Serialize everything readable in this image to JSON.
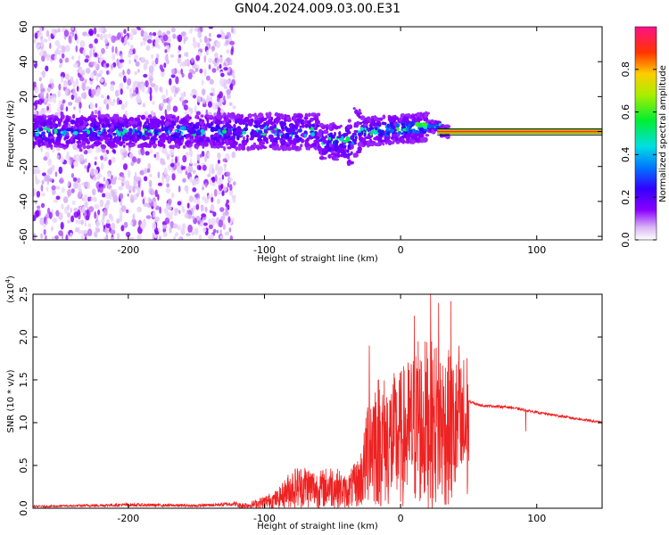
{
  "title": "GN04.2024.009.03.00.E31",
  "chart_data": [
    {
      "type": "heatmap",
      "xlabel": "Height of straight line (km)",
      "ylabel": "Frequency (Hz)",
      "xlim": [
        -270,
        148
      ],
      "ylim": [
        -62,
        60
      ],
      "xticks": [
        "-200",
        "-100",
        "0",
        "100"
      ],
      "yticks": [
        "-60",
        "-40",
        "-20",
        "0",
        "20",
        "40",
        "60"
      ],
      "colorbar": {
        "label": "Normalized spectral amplitude",
        "range": [
          0,
          1
        ],
        "ticks": [
          "0.0",
          "0.2",
          "0.4",
          "0.6",
          "0.8"
        ]
      },
      "noise_extent_x": [
        -270,
        -130
      ],
      "signal_band_center_hz": 0,
      "strong_tone_start_x": 35,
      "strong_tone_value": 1.0
    },
    {
      "type": "line",
      "xlabel": "Height of straight line (km)",
      "ylabel": "SNR (10 * v/v)",
      "scale_label": "(x10",
      "scale_exponent": "4",
      "scale_close": ")",
      "xlim": [
        -270,
        148
      ],
      "ylim": [
        0,
        2.5
      ],
      "xticks": [
        "-200",
        "-100",
        "0",
        "100"
      ],
      "yticks": [
        "0.0",
        "0.5",
        "1.0",
        "1.5",
        "2.0",
        "2.5"
      ],
      "color": "#ee2222",
      "series": [
        {
          "x": [
            -270,
            -200,
            -150,
            -110,
            -100,
            -90,
            -80,
            -70,
            -60,
            -50,
            -40,
            -30,
            -25,
            -20,
            -10,
            0,
            10,
            20,
            30,
            40,
            45,
            50,
            55,
            60,
            80,
            100,
            120,
            148
          ],
          "y": [
            0.02,
            0.04,
            0.03,
            0.06,
            0.12,
            0.18,
            0.38,
            0.42,
            0.35,
            0.42,
            0.3,
            0.5,
            0.9,
            1.05,
            1.0,
            1.05,
            1.2,
            1.3,
            1.25,
            1.15,
            1.15,
            1.25,
            1.22,
            1.2,
            1.18,
            1.12,
            1.07,
            1.0
          ],
          "peaks": [
            {
              "x": -23,
              "y": 1.9
            },
            {
              "x": 10,
              "y": 2.25
            },
            {
              "x": 13,
              "y": 1.95
            },
            {
              "x": 22,
              "y": 2.5
            },
            {
              "x": 28,
              "y": 2.4
            },
            {
              "x": 37,
              "y": 2.42
            },
            {
              "x": 43,
              "y": 1.9
            }
          ],
          "dip": {
            "x": 92,
            "y": 0.9
          }
        }
      ]
    }
  ]
}
